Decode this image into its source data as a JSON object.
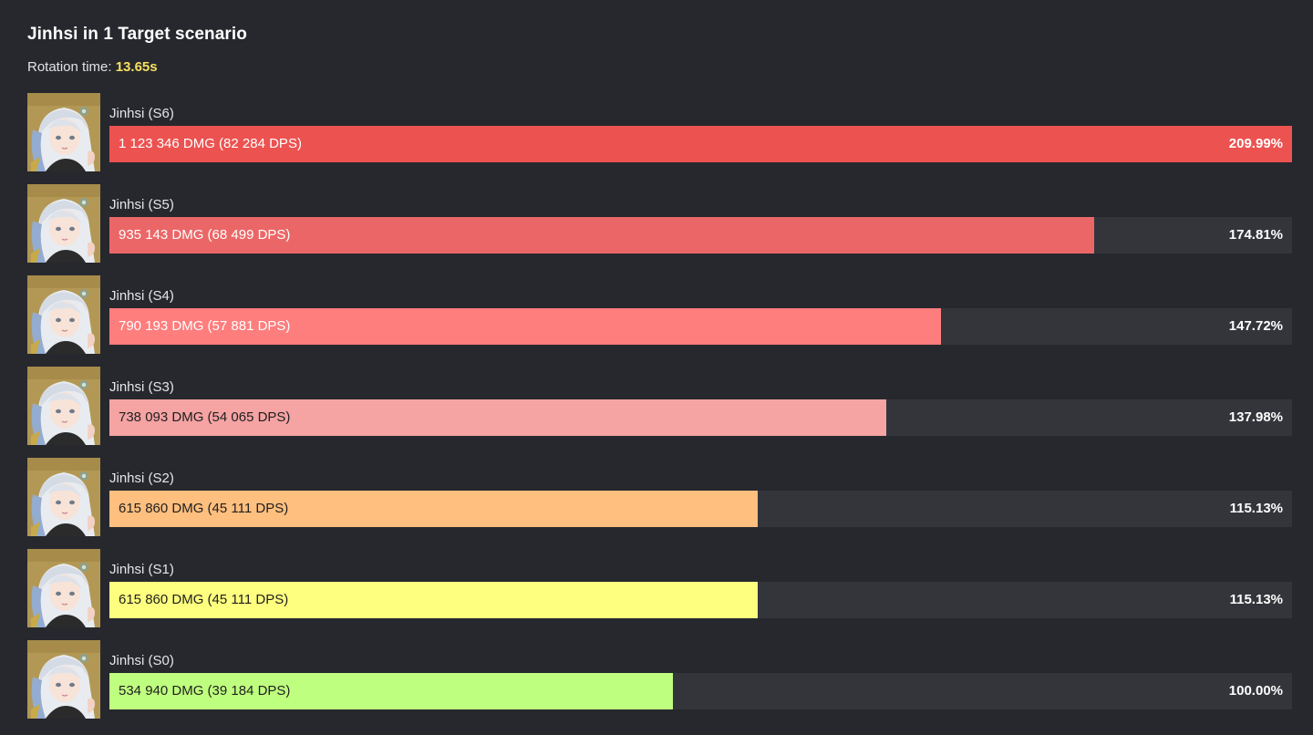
{
  "header": {
    "title": "Jinhsi in 1 Target scenario",
    "rotation_label": "Rotation time:",
    "rotation_value": "13.65s"
  },
  "colors": {
    "background": "#27282d",
    "track": "#34353b",
    "rotation_accent": "#f6e05e"
  },
  "chart_data": {
    "type": "bar",
    "orientation": "horizontal",
    "title": "Jinhsi in 1 Target scenario",
    "categories": [
      "Jinhsi (S6)",
      "Jinhsi (S5)",
      "Jinhsi (S4)",
      "Jinhsi (S3)",
      "Jinhsi (S2)",
      "Jinhsi (S1)",
      "Jinhsi (S0)"
    ],
    "values": [
      209.99,
      174.81,
      147.72,
      137.98,
      115.13,
      115.13,
      100.0
    ],
    "xlim": [
      0,
      209.99
    ],
    "grid": false,
    "bars": [
      {
        "label": "Jinhsi (S6)",
        "dmg": 1123346,
        "dps": 82284,
        "percent": 209.99,
        "dmg_text": "1 123 346 DMG (82 284 DPS)",
        "percent_text": "209.99%",
        "color": "#ec5250",
        "text_color": "#ffffff"
      },
      {
        "label": "Jinhsi (S5)",
        "dmg": 935143,
        "dps": 68499,
        "percent": 174.81,
        "dmg_text": "935 143 DMG (68 499 DPS)",
        "percent_text": "174.81%",
        "color": "#eb6767",
        "text_color": "#ffffff"
      },
      {
        "label": "Jinhsi (S4)",
        "dmg": 790193,
        "dps": 57881,
        "percent": 147.72,
        "dmg_text": "790 193 DMG (57 881 DPS)",
        "percent_text": "147.72%",
        "color": "#fe7d7d",
        "text_color": "#ffffff"
      },
      {
        "label": "Jinhsi (S3)",
        "dmg": 738093,
        "dps": 54065,
        "percent": 137.98,
        "dmg_text": "738 093 DMG (54 065 DPS)",
        "percent_text": "137.98%",
        "color": "#f5a3a3",
        "text_color": "#1f1f1f"
      },
      {
        "label": "Jinhsi (S2)",
        "dmg": 615860,
        "dps": 45111,
        "percent": 115.13,
        "dmg_text": "615 860 DMG (45 111 DPS)",
        "percent_text": "115.13%",
        "color": "#ffbf7f",
        "text_color": "#1f1f1f"
      },
      {
        "label": "Jinhsi (S1)",
        "dmg": 615860,
        "dps": 45111,
        "percent": 115.13,
        "dmg_text": "615 860 DMG (45 111 DPS)",
        "percent_text": "115.13%",
        "color": "#ffff7f",
        "text_color": "#1f1f1f"
      },
      {
        "label": "Jinhsi (S0)",
        "dmg": 534940,
        "dps": 39184,
        "percent": 100.0,
        "dmg_text": "534 940 DMG (39 184 DPS)",
        "percent_text": "100.00%",
        "color": "#bfff7f",
        "text_color": "#1f1f1f"
      }
    ]
  },
  "avatar": {
    "icon": "character-portrait-icon"
  }
}
